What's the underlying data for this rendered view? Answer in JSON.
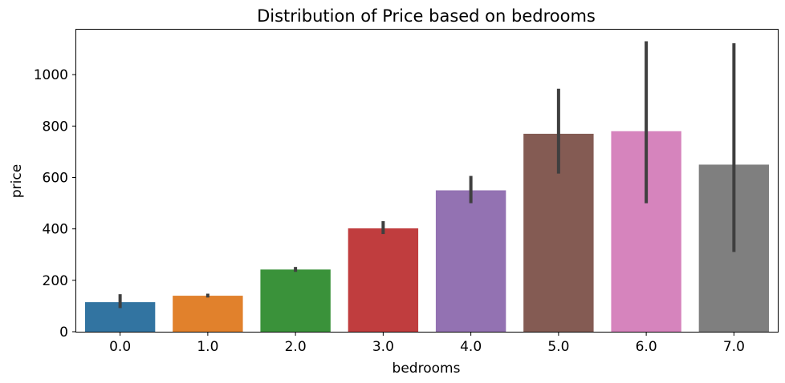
{
  "chart_data": {
    "type": "bar",
    "title": "Distribution of Price based on bedrooms",
    "xlabel": "bedrooms",
    "ylabel": "price",
    "categories": [
      "0.0",
      "1.0",
      "2.0",
      "3.0",
      "4.0",
      "5.0",
      "6.0",
      "7.0"
    ],
    "values": [
      115,
      140,
      242,
      402,
      550,
      770,
      780,
      650
    ],
    "error_low": [
      92,
      133,
      233,
      380,
      500,
      615,
      500,
      310
    ],
    "error_high": [
      146,
      148,
      252,
      430,
      606,
      945,
      1130,
      1122
    ],
    "colors": [
      "#3274a1",
      "#e1812c",
      "#3a923a",
      "#c03d3e",
      "#9372b2",
      "#845b53",
      "#d684bd",
      "#7f7f7f"
    ],
    "ylim": [
      0,
      1175
    ],
    "yticks": [
      0,
      200,
      400,
      600,
      800,
      1000
    ],
    "grid": false,
    "legend": "none"
  }
}
